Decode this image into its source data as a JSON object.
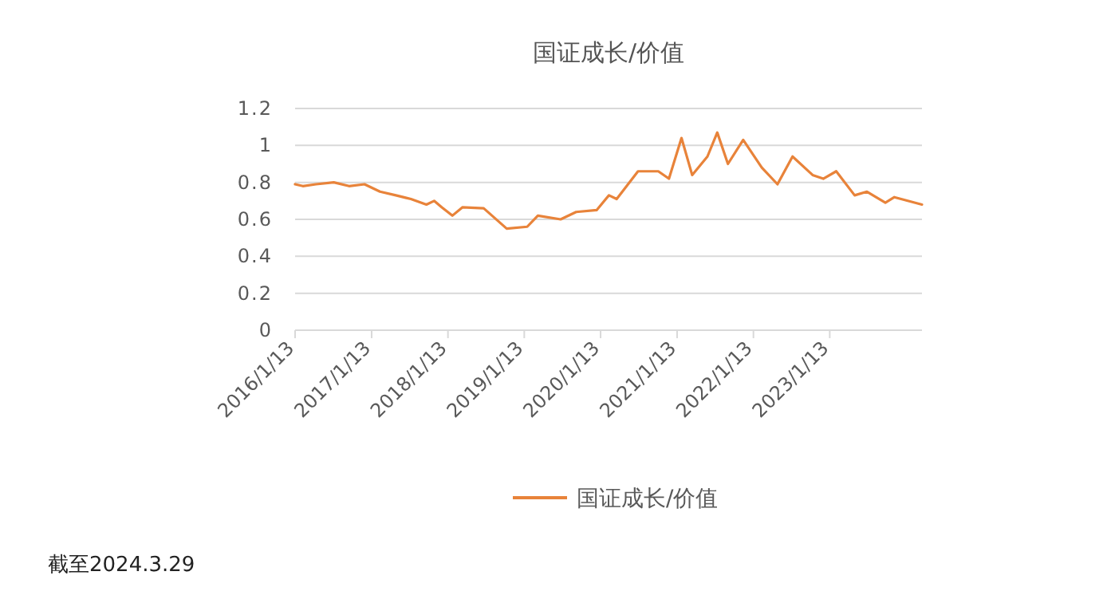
{
  "chart_data": {
    "type": "line",
    "title": "国证成长/价值",
    "x": [
      "2016-01-13",
      "2016-02-19",
      "2016-04-22",
      "2016-07-16",
      "2016-09-27",
      "2016-12-10",
      "2017-02-22",
      "2017-05-09",
      "2017-07-20",
      "2017-10-02",
      "2017-11-08",
      "2017-12-15",
      "2018-02-03",
      "2018-03-23",
      "2018-07-03",
      "2018-10-21",
      "2019-01-27",
      "2019-03-19",
      "2019-07-06",
      "2019-09-18",
      "2019-12-25",
      "2020-02-22",
      "2020-03-30",
      "2020-07-10",
      "2020-08-25",
      "2020-10-15",
      "2020-12-05",
      "2021-02-03",
      "2021-03-26",
      "2021-06-07",
      "2021-07-24",
      "2021-09-13",
      "2021-11-25",
      "2022-02-22",
      "2022-05-08",
      "2022-07-19",
      "2022-10-23",
      "2022-12-13",
      "2023-02-13",
      "2023-05-12",
      "2023-07-10",
      "2023-10-06",
      "2023-11-18",
      "2024-03-29"
    ],
    "series": [
      {
        "name": "国证成长/价值",
        "color": "#e8833a",
        "values": [
          0.79,
          0.78,
          0.79,
          0.8,
          0.78,
          0.79,
          0.75,
          0.73,
          0.71,
          0.68,
          0.7,
          0.665,
          0.62,
          0.665,
          0.66,
          0.55,
          0.56,
          0.62,
          0.6,
          0.64,
          0.65,
          0.73,
          0.71,
          0.86,
          0.86,
          0.86,
          0.82,
          1.04,
          0.84,
          0.94,
          1.07,
          0.9,
          1.03,
          0.88,
          0.79,
          0.94,
          0.84,
          0.82,
          0.86,
          0.73,
          0.75,
          0.69,
          0.72,
          0.68
        ]
      }
    ],
    "xlim": [
      "2016-01-13",
      "2024-03-29"
    ],
    "xticks": [
      {
        "value": "2016-01-13",
        "label": "2016/1/13"
      },
      {
        "value": "2017-01-13",
        "label": "2017/1/13"
      },
      {
        "value": "2018-01-13",
        "label": "2018/1/13"
      },
      {
        "value": "2019-01-13",
        "label": "2019/1/13"
      },
      {
        "value": "2020-01-13",
        "label": "2020/1/13"
      },
      {
        "value": "2021-01-13",
        "label": "2021/1/13"
      },
      {
        "value": "2022-01-13",
        "label": "2022/1/13"
      },
      {
        "value": "2023-01-13",
        "label": "2023/1/13"
      }
    ],
    "ylim": [
      0,
      1.2
    ],
    "yticks": [
      0,
      0.2,
      0.4,
      0.6,
      0.8,
      1,
      1.2
    ],
    "grid": "y",
    "legend": "bottom",
    "annotations": [
      "截至2024.3.29"
    ]
  }
}
